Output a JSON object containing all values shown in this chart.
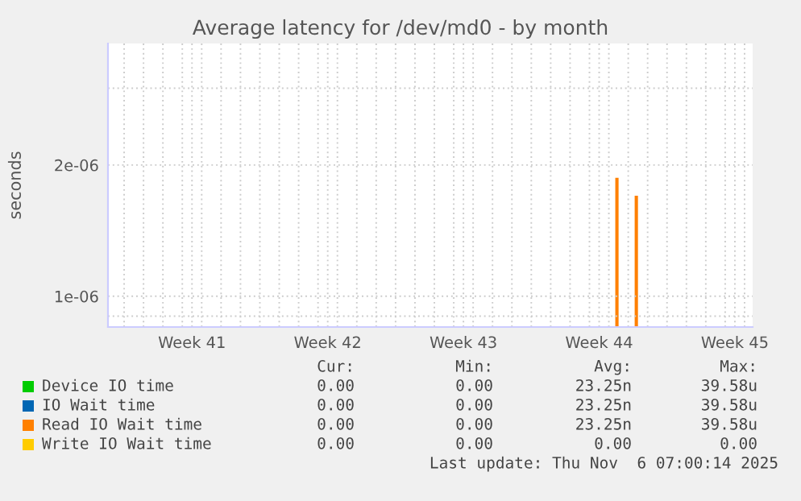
{
  "chart_data": {
    "type": "bar",
    "title": "Average latency for /dev/md0 - by month",
    "ylabel": "seconds",
    "log": "y",
    "ylim": [
      8.5e-07,
      3.8e-06
    ],
    "yticks": [
      {
        "value": 9e-07,
        "label": null
      },
      {
        "value": 1e-06,
        "label": "1e-06"
      },
      {
        "value": 2e-06,
        "label": "2e-06"
      },
      {
        "value": 3e-06,
        "label": null
      }
    ],
    "xlim": [
      "2025-10-05T04:00",
      "2025-11-07T10:00"
    ],
    "xticks": [
      {
        "value": "2025-10-06",
        "label": null
      },
      {
        "value": "2025-10-07",
        "label": null
      },
      {
        "value": "2025-10-08",
        "label": null
      },
      {
        "value": "2025-10-09",
        "label": null
      },
      {
        "value": "2025-10-09T12:00",
        "label": "Week 41"
      },
      {
        "value": "2025-10-10",
        "label": null
      },
      {
        "value": "2025-10-11",
        "label": null
      },
      {
        "value": "2025-10-12",
        "label": null
      },
      {
        "value": "2025-10-13",
        "label": null
      },
      {
        "value": "2025-10-14",
        "label": null
      },
      {
        "value": "2025-10-15",
        "label": null
      },
      {
        "value": "2025-10-16",
        "label": null
      },
      {
        "value": "2025-10-16T12:00",
        "label": "Week 42"
      },
      {
        "value": "2025-10-17",
        "label": null
      },
      {
        "value": "2025-10-18",
        "label": null
      },
      {
        "value": "2025-10-19",
        "label": null
      },
      {
        "value": "2025-10-20",
        "label": null
      },
      {
        "value": "2025-10-21",
        "label": null
      },
      {
        "value": "2025-10-22",
        "label": null
      },
      {
        "value": "2025-10-23",
        "label": null
      },
      {
        "value": "2025-10-23T12:00",
        "label": "Week 43"
      },
      {
        "value": "2025-10-24",
        "label": null
      },
      {
        "value": "2025-10-25",
        "label": null
      },
      {
        "value": "2025-10-26",
        "label": null
      },
      {
        "value": "2025-10-27",
        "label": null
      },
      {
        "value": "2025-10-28",
        "label": null
      },
      {
        "value": "2025-10-29",
        "label": null
      },
      {
        "value": "2025-10-30",
        "label": null
      },
      {
        "value": "2025-10-30T12:00",
        "label": "Week 44"
      },
      {
        "value": "2025-10-31",
        "label": null
      },
      {
        "value": "2025-11-01",
        "label": null
      },
      {
        "value": "2025-11-02",
        "label": null
      },
      {
        "value": "2025-11-03",
        "label": null
      },
      {
        "value": "2025-11-04",
        "label": null
      },
      {
        "value": "2025-11-05",
        "label": null
      },
      {
        "value": "2025-11-06",
        "label": null
      },
      {
        "value": "2025-11-06T12:00",
        "label": "Week 45"
      },
      {
        "value": "2025-11-07",
        "label": null
      }
    ],
    "grid": true,
    "legend": "bottom",
    "x": [
      "2025-10-31T10:00",
      "2025-11-01T10:00"
    ],
    "series": [
      {
        "name": "Device IO time",
        "color": "#00cc00",
        "values": [
          null,
          null
        ]
      },
      {
        "name": "IO Wait time",
        "color": "#0066b3",
        "values": [
          null,
          null
        ]
      },
      {
        "name": "Read IO Wait time",
        "color": "#ff8000",
        "values": [
          1.87e-06,
          1.7e-06
        ]
      },
      {
        "name": "Write IO Wait time",
        "color": "#ffcc00",
        "values": [
          null,
          null
        ]
      }
    ],
    "annotations": [
      "Cur:",
      "Min:",
      "Avg:",
      "Max:",
      "0.00",
      "0.00",
      "23.25n",
      "39.58u",
      "0.00",
      "0.00",
      "23.25n",
      "39.58u",
      "0.00",
      "0.00",
      "23.25n",
      "39.58u",
      "0.00",
      "0.00",
      "0.00",
      "0.00",
      "Last update: Thu Nov  6 07:00:14 2025"
    ]
  }
}
